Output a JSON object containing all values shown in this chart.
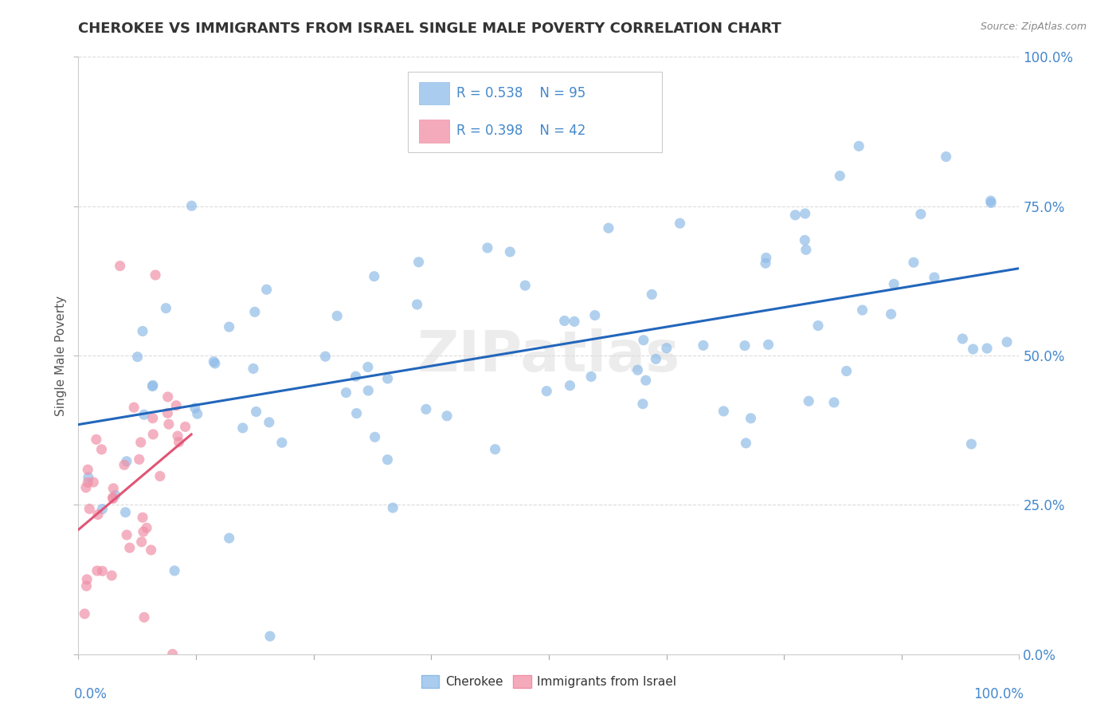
{
  "title": "CHEROKEE VS IMMIGRANTS FROM ISRAEL SINGLE MALE POVERTY CORRELATION CHART",
  "source": "Source: ZipAtlas.com",
  "ylabel": "Single Male Poverty",
  "cherokee_color": "#90bce8",
  "israel_color": "#f090a8",
  "cherokee_line_color": "#2266bb",
  "israel_line_color": "#e05575",
  "watermark": "ZIPatlas",
  "background_color": "#ffffff",
  "R_cherokee": "0.538",
  "N_cherokee": "95",
  "R_israel": "0.398",
  "N_israel": "42",
  "cherokee_legend_color": "#aaccee",
  "israel_legend_color": "#f4aabb",
  "legend_text_color": "#4488cc",
  "title_fontsize": 13,
  "source_fontsize": 9,
  "axis_tick_color": "#4488cc",
  "grid_color": "#cccccc",
  "grid_style": "--"
}
